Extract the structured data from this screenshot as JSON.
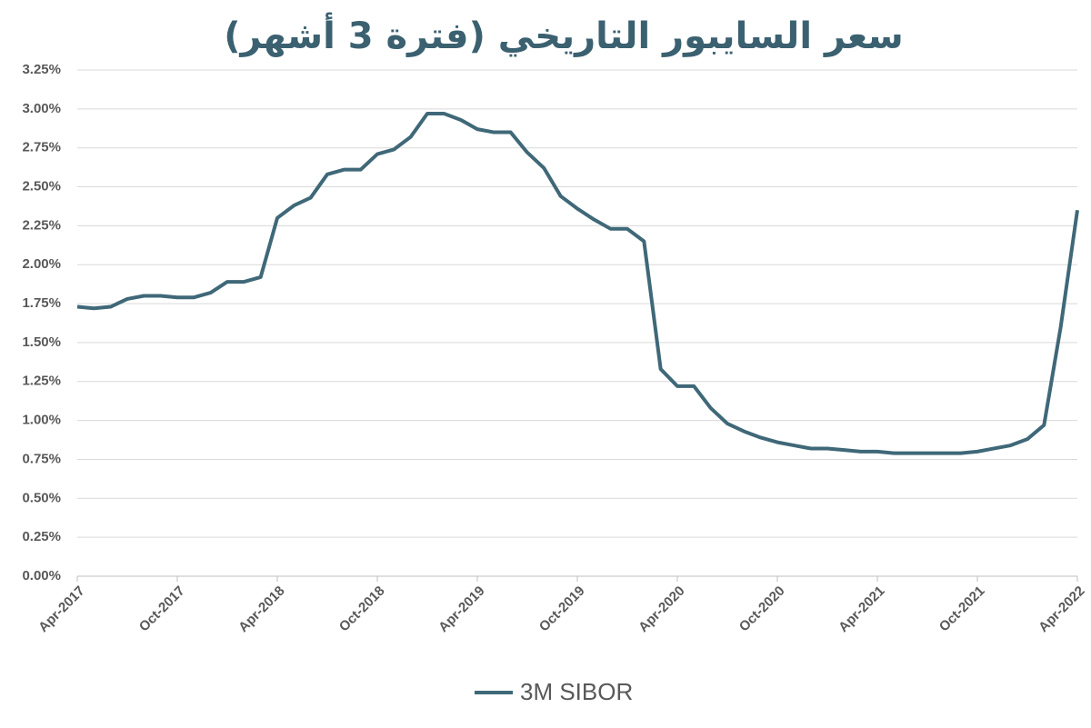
{
  "chart_data": {
    "type": "line",
    "title": "سعر السايبور التاريخي (فترة 3 أشهر)",
    "x": [
      "2017-04",
      "2017-05",
      "2017-06",
      "2017-07",
      "2017-08",
      "2017-09",
      "2017-10",
      "2017-11",
      "2017-12",
      "2018-01",
      "2018-02",
      "2018-03",
      "2018-04",
      "2018-05",
      "2018-06",
      "2018-07",
      "2018-08",
      "2018-09",
      "2018-10",
      "2018-11",
      "2018-12",
      "2019-01",
      "2019-02",
      "2019-03",
      "2019-04",
      "2019-05",
      "2019-06",
      "2019-07",
      "2019-08",
      "2019-09",
      "2019-10",
      "2019-11",
      "2019-12",
      "2020-01",
      "2020-02",
      "2020-03",
      "2020-04",
      "2020-05",
      "2020-06",
      "2020-07",
      "2020-08",
      "2020-09",
      "2020-10",
      "2020-11",
      "2020-12",
      "2021-01",
      "2021-02",
      "2021-03",
      "2021-04",
      "2021-05",
      "2021-06",
      "2021-07",
      "2021-08",
      "2021-09",
      "2021-10",
      "2021-11",
      "2021-12",
      "2022-01",
      "2022-02",
      "2022-03",
      "2022-04"
    ],
    "series": [
      {
        "name": "3M SIBOR",
        "color": "#3f6878",
        "values": [
          1.73,
          1.72,
          1.73,
          1.78,
          1.8,
          1.8,
          1.79,
          1.79,
          1.82,
          1.89,
          1.89,
          1.92,
          2.3,
          2.38,
          2.43,
          2.58,
          2.61,
          2.61,
          2.71,
          2.74,
          2.82,
          2.97,
          2.97,
          2.93,
          2.87,
          2.85,
          2.85,
          2.72,
          2.62,
          2.44,
          2.36,
          2.29,
          2.23,
          2.23,
          2.15,
          1.33,
          1.22,
          1.22,
          1.08,
          0.98,
          0.93,
          0.89,
          0.86,
          0.84,
          0.82,
          0.82,
          0.81,
          0.8,
          0.8,
          0.79,
          0.79,
          0.79,
          0.79,
          0.79,
          0.8,
          0.82,
          0.84,
          0.88,
          0.97,
          1.6,
          2.35
        ]
      }
    ],
    "xlim": [
      "2017-04",
      "2022-04"
    ],
    "xticks": [
      {
        "value": "2017-04",
        "label": "Apr-2017"
      },
      {
        "value": "2017-10",
        "label": "Oct-2017"
      },
      {
        "value": "2018-04",
        "label": "Apr-2018"
      },
      {
        "value": "2018-10",
        "label": "Oct-2018"
      },
      {
        "value": "2019-04",
        "label": "Apr-2019"
      },
      {
        "value": "2019-10",
        "label": "Oct-2019"
      },
      {
        "value": "2020-04",
        "label": "Apr-2020"
      },
      {
        "value": "2020-10",
        "label": "Oct-2020"
      },
      {
        "value": "2021-04",
        "label": "Apr-2021"
      },
      {
        "value": "2021-10",
        "label": "Oct-2021"
      },
      {
        "value": "2022-04",
        "label": "Apr-2022"
      }
    ],
    "ylim": [
      0,
      3.25
    ],
    "yticks": [
      {
        "value": 0,
        "label": "0.00%"
      },
      {
        "value": 0.25,
        "label": "0.25%"
      },
      {
        "value": 0.5,
        "label": "0.50%"
      },
      {
        "value": 0.75,
        "label": "0.75%"
      },
      {
        "value": 1,
        "label": "1.00%"
      },
      {
        "value": 1.25,
        "label": "1.25%"
      },
      {
        "value": 1.5,
        "label": "1.50%"
      },
      {
        "value": 1.75,
        "label": "1.75%"
      },
      {
        "value": 2,
        "label": "2.00%"
      },
      {
        "value": 2.25,
        "label": "2.25%"
      },
      {
        "value": 2.5,
        "label": "2.50%"
      },
      {
        "value": 2.75,
        "label": "2.75%"
      },
      {
        "value": 3,
        "label": "3.00%"
      },
      {
        "value": 3.25,
        "label": "3.25%"
      }
    ],
    "grid": true,
    "legend": "bottom"
  }
}
